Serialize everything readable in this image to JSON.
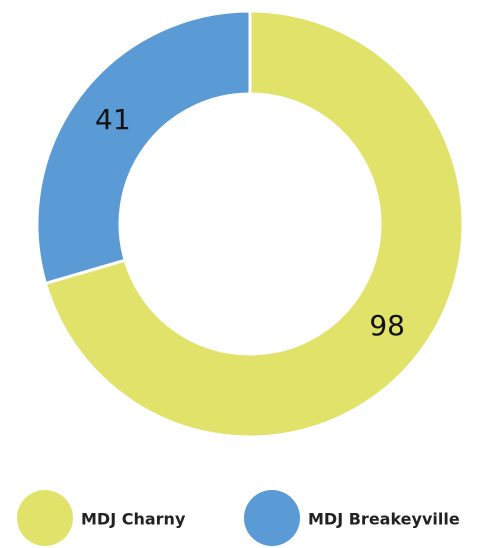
{
  "chart_data": {
    "type": "donut",
    "categories": [
      "MDJ Charny",
      "MDJ Breakeyville"
    ],
    "values": [
      98,
      41
    ],
    "colors": [
      "#e0e26a",
      "#5b9bd5"
    ]
  }
}
